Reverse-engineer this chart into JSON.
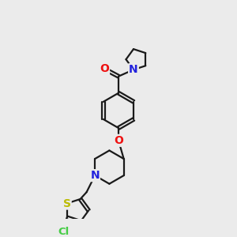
{
  "background_color": "#ebebeb",
  "bond_color": "#1a1a1a",
  "atom_colors": {
    "O": "#ee1111",
    "N": "#2222dd",
    "S": "#bbbb00",
    "Cl": "#44cc44",
    "C": "#1a1a1a"
  },
  "bond_width": 1.6,
  "figsize": [
    3.0,
    3.0
  ],
  "dpi": 100
}
